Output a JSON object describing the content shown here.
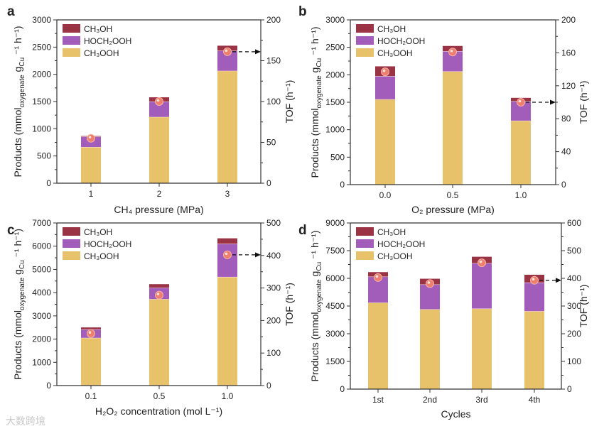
{
  "colors": {
    "CH3OOH": "#E8C16B",
    "HOCH2OOH": "#A15DB9",
    "CH3OH": "#9A3445",
    "tof_dot": "#EE7F6E",
    "separator": "#F6E0E0",
    "axis": "#333333"
  },
  "watermark": "大数跨境",
  "chart_data": [
    {
      "panel": "a",
      "type": "bar",
      "title": "",
      "xlabel": "CH₄ pressure (MPa)",
      "ylabel_parts": [
        "Products (mmol",
        "oxygenate",
        " g",
        "Cu",
        " ⁻¹ h⁻¹)"
      ],
      "y2label": "TOF (h⁻¹)",
      "categories": [
        "1",
        "2",
        "3"
      ],
      "legend": [
        "CH₃OH",
        "HOCH₂OOH",
        "CH₃OOH"
      ],
      "legend_position": "top-left",
      "stacked": true,
      "series": [
        {
          "name": "CH₃OOH",
          "values": [
            665,
            1217,
            2065
          ]
        },
        {
          "name": "HOCH₂OOH",
          "values": [
            192,
            283,
            370
          ]
        },
        {
          "name": "CH₃OH",
          "values": [
            9,
            78,
            91
          ]
        }
      ],
      "tof": [
        55,
        100,
        161
      ],
      "tof_arrow_index": 2,
      "ylim": [
        0,
        3000
      ],
      "yticks": [
        "0",
        "500",
        "1000",
        "1500",
        "2000",
        "2500",
        "3000"
      ],
      "y2lim": [
        0,
        200
      ],
      "y2ticks": [
        "0",
        "50",
        "100",
        "150",
        "200"
      ]
    },
    {
      "panel": "b",
      "type": "bar",
      "title": "",
      "xlabel": "O₂ pressure (MPa)",
      "ylabel_parts": [
        "Products (mmol",
        "oxygenate",
        " g",
        "Cu",
        " ⁻¹ h⁻¹)"
      ],
      "y2label": "TOF (h⁻¹)",
      "categories": [
        "0.0",
        "0.5",
        "1.0"
      ],
      "legend": [
        "CH₃OH",
        "HOCH₂OOH",
        "CH₃OOH"
      ],
      "legend_position": "top-left",
      "stacked": true,
      "series": [
        {
          "name": "CH₃OOH",
          "values": [
            1554,
            2063,
            1165
          ]
        },
        {
          "name": "HOCH₂OOH",
          "values": [
            423,
            367,
            354
          ]
        },
        {
          "name": "CH₃OH",
          "values": [
            177,
            95,
            61
          ]
        }
      ],
      "tof": [
        137,
        161,
        100
      ],
      "tof_arrow_index": 2,
      "ylim": [
        0,
        3000
      ],
      "yticks": [
        "0",
        "500",
        "1000",
        "1500",
        "2000",
        "2500",
        "3000"
      ],
      "y2lim": [
        0,
        200
      ],
      "y2ticks": [
        "0",
        "40",
        "80",
        "120",
        "160",
        "200"
      ]
    },
    {
      "panel": "c",
      "type": "bar",
      "title": "",
      "xlabel": "H₂O₂ concentration (mol L⁻¹)",
      "ylabel_parts": [
        "Products (mmol",
        "oxygenate",
        " g",
        "Cu",
        " ⁻¹ h⁻¹)"
      ],
      "y2label": "TOF (h⁻¹)",
      "categories": [
        "0.1",
        "0.5",
        "1.0"
      ],
      "legend": [
        "CH₃OH",
        "HOCH₂OOH",
        "CH₃OOH"
      ],
      "legend_position": "top-left",
      "stacked": true,
      "series": [
        {
          "name": "CH₃OOH",
          "values": [
            2055,
            3724,
            4680
          ]
        },
        {
          "name": "HOCH₂OOH",
          "values": [
            366,
            488,
            1425
          ]
        },
        {
          "name": "CH₃OH",
          "values": [
            82,
            153,
            234
          ]
        }
      ],
      "tof": [
        160,
        278,
        402
      ],
      "tof_arrow_index": 2,
      "ylim": [
        0,
        7000
      ],
      "yticks": [
        "0",
        "1000",
        "2000",
        "3000",
        "4000",
        "5000",
        "6000",
        "7000"
      ],
      "y2lim": [
        0,
        500
      ],
      "y2ticks": [
        "0",
        "100",
        "200",
        "300",
        "400",
        "500"
      ]
    },
    {
      "panel": "d",
      "type": "bar",
      "title": "",
      "xlabel": "Cycles",
      "ylabel_parts": [
        "Products (mmol",
        "oxygenate",
        " g",
        "Cu",
        " ⁻¹ h⁻¹)"
      ],
      "y2label": "TOF (h⁻¹)",
      "categories": [
        "1st",
        "2nd",
        "3rd",
        "4th"
      ],
      "legend": [
        "CH₃OH",
        "HOCH₂OOH",
        "CH₃OOH"
      ],
      "legend_position": "top-left",
      "stacked": true,
      "series": [
        {
          "name": "CH₃OOH",
          "values": [
            4686,
            4327,
            4366,
            4225
          ]
        },
        {
          "name": "HOCH₂OOH",
          "values": [
            1408,
            1344,
            2458,
            1549
          ]
        },
        {
          "name": "CH₃OH",
          "values": [
            243,
            308,
            345,
            422
          ]
        }
      ],
      "tof": [
        403,
        381,
        456,
        393
      ],
      "tof_arrow_index": 3,
      "ylim": [
        0,
        9000
      ],
      "yticks": [
        "0",
        "1500",
        "3000",
        "4500",
        "6000",
        "7500",
        "9000"
      ],
      "y2lim": [
        0,
        600
      ],
      "y2ticks": [
        "0",
        "100",
        "200",
        "300",
        "400",
        "500",
        "600"
      ]
    }
  ]
}
